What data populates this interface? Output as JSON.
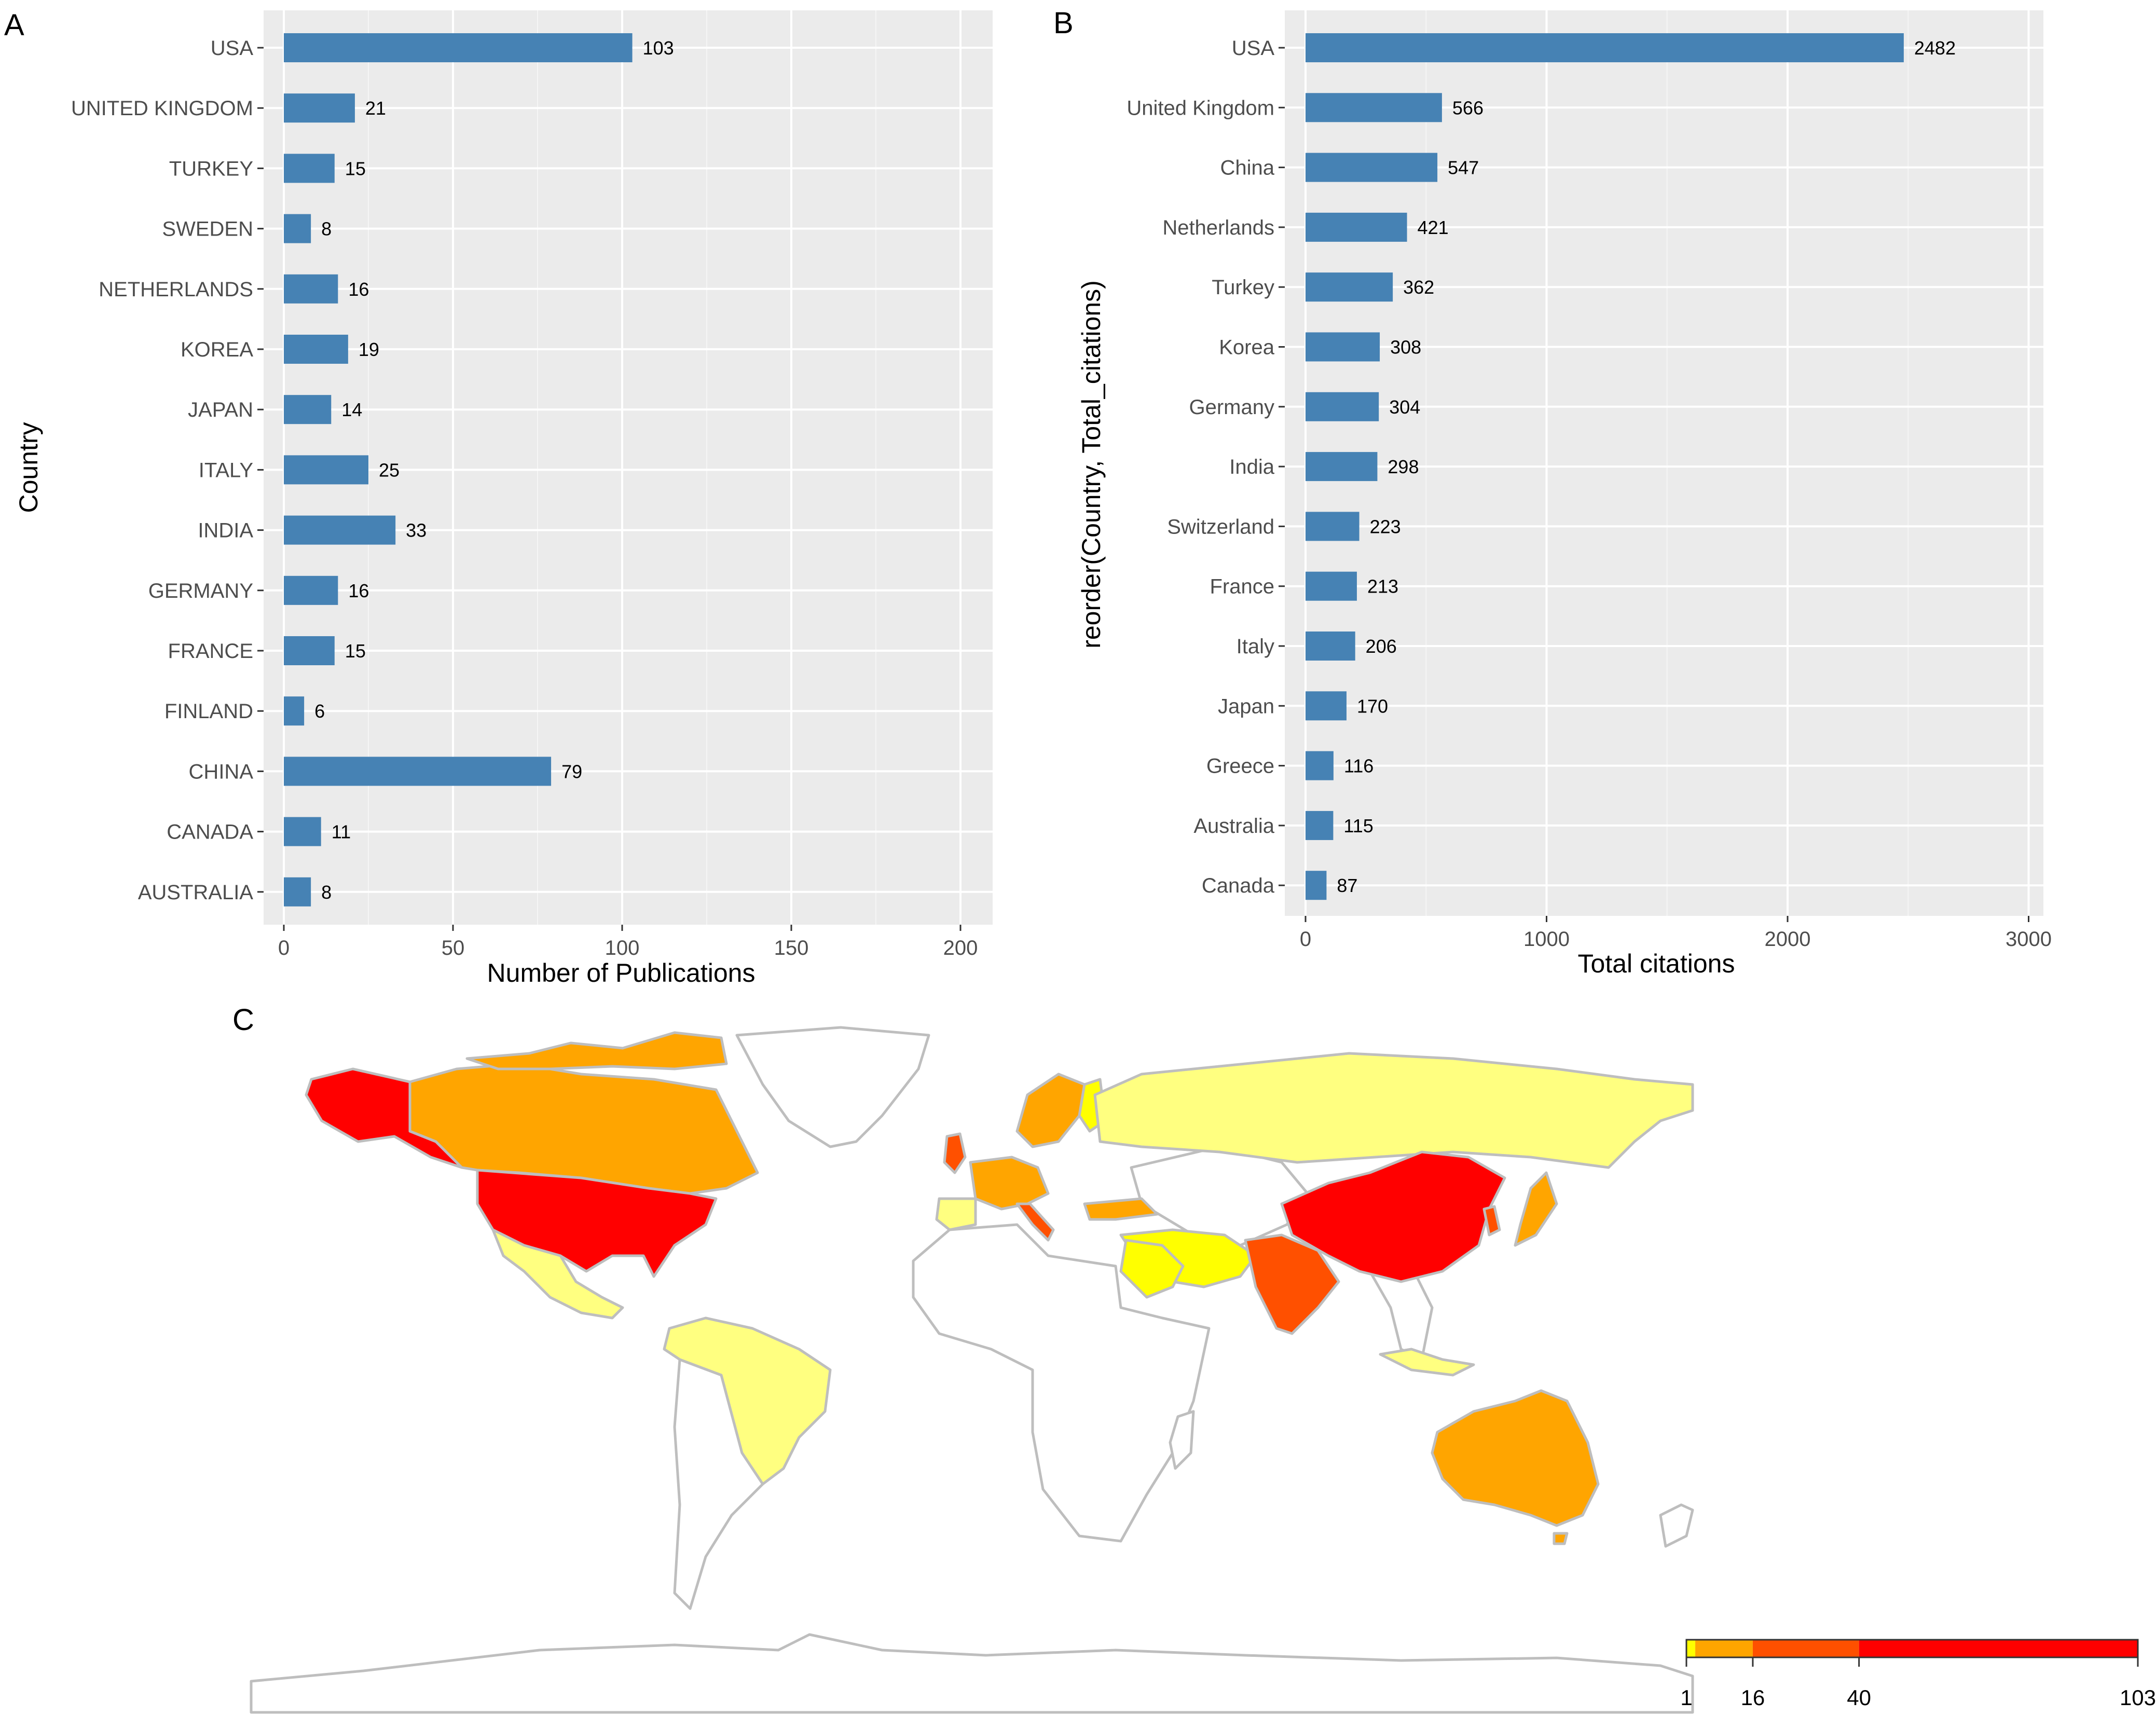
{
  "panels": {
    "a": {
      "label": "A"
    },
    "b": {
      "label": "B"
    },
    "c": {
      "label": "C"
    }
  },
  "chart_data": [
    {
      "id": "A",
      "type": "bar",
      "orientation": "horizontal",
      "xlabel": "Number of Publications",
      "ylabel": "Country",
      "xlim": [
        0,
        210
      ],
      "xticks": [
        0,
        50,
        100,
        150,
        200
      ],
      "grid": true,
      "bar_color": "#4682B4",
      "categories": [
        "USA",
        "UNITED KINGDOM",
        "TURKEY",
        "SWEDEN",
        "NETHERLANDS",
        "KOREA",
        "JAPAN",
        "ITALY",
        "INDIA",
        "GERMANY",
        "FRANCE",
        "FINLAND",
        "CHINA",
        "CANADA",
        "AUSTRALIA"
      ],
      "values": [
        103,
        21,
        15,
        8,
        16,
        19,
        14,
        25,
        33,
        16,
        15,
        6,
        79,
        11,
        8
      ]
    },
    {
      "id": "B",
      "type": "bar",
      "orientation": "horizontal",
      "xlabel": "Total citations",
      "ylabel": "reorder(Country, Total_citations)",
      "xlim": [
        0,
        3050
      ],
      "xticks": [
        0,
        1000,
        2000,
        3000
      ],
      "grid": true,
      "bar_color": "#4682B4",
      "categories": [
        "USA",
        "United Kingdom",
        "China",
        "Netherlands",
        "Turkey",
        "Korea",
        "Germany",
        "India",
        "Switzerland",
        "France",
        "Italy",
        "Japan",
        "Greece",
        "Australia",
        "Canada"
      ],
      "values": [
        2482,
        566,
        547,
        421,
        362,
        308,
        304,
        298,
        223,
        213,
        206,
        170,
        116,
        115,
        87
      ]
    },
    {
      "id": "C",
      "type": "choropleth",
      "legend": {
        "position": "bottom-right",
        "ticks": [
          1,
          16,
          40,
          103
        ],
        "tick_labels": [
          "1",
          "16",
          "40",
          "103"
        ],
        "bins": [
          {
            "from": 1,
            "to": 3,
            "color": "#FFFF00"
          },
          {
            "from": 3,
            "to": 16,
            "color": "#FFA500"
          },
          {
            "from": 16,
            "to": 40,
            "color": "#FF5000"
          },
          {
            "from": 40,
            "to": 103,
            "color": "#FF0000"
          }
        ]
      },
      "colors": {
        "very_high": "#FF0000",
        "high": "#FF5000",
        "medium": "#FFA500",
        "low": "#FFFF00",
        "very_low": "#FFFF80",
        "no_data": "#FFFFFF",
        "border": "#BEBEBE"
      }
    }
  ]
}
